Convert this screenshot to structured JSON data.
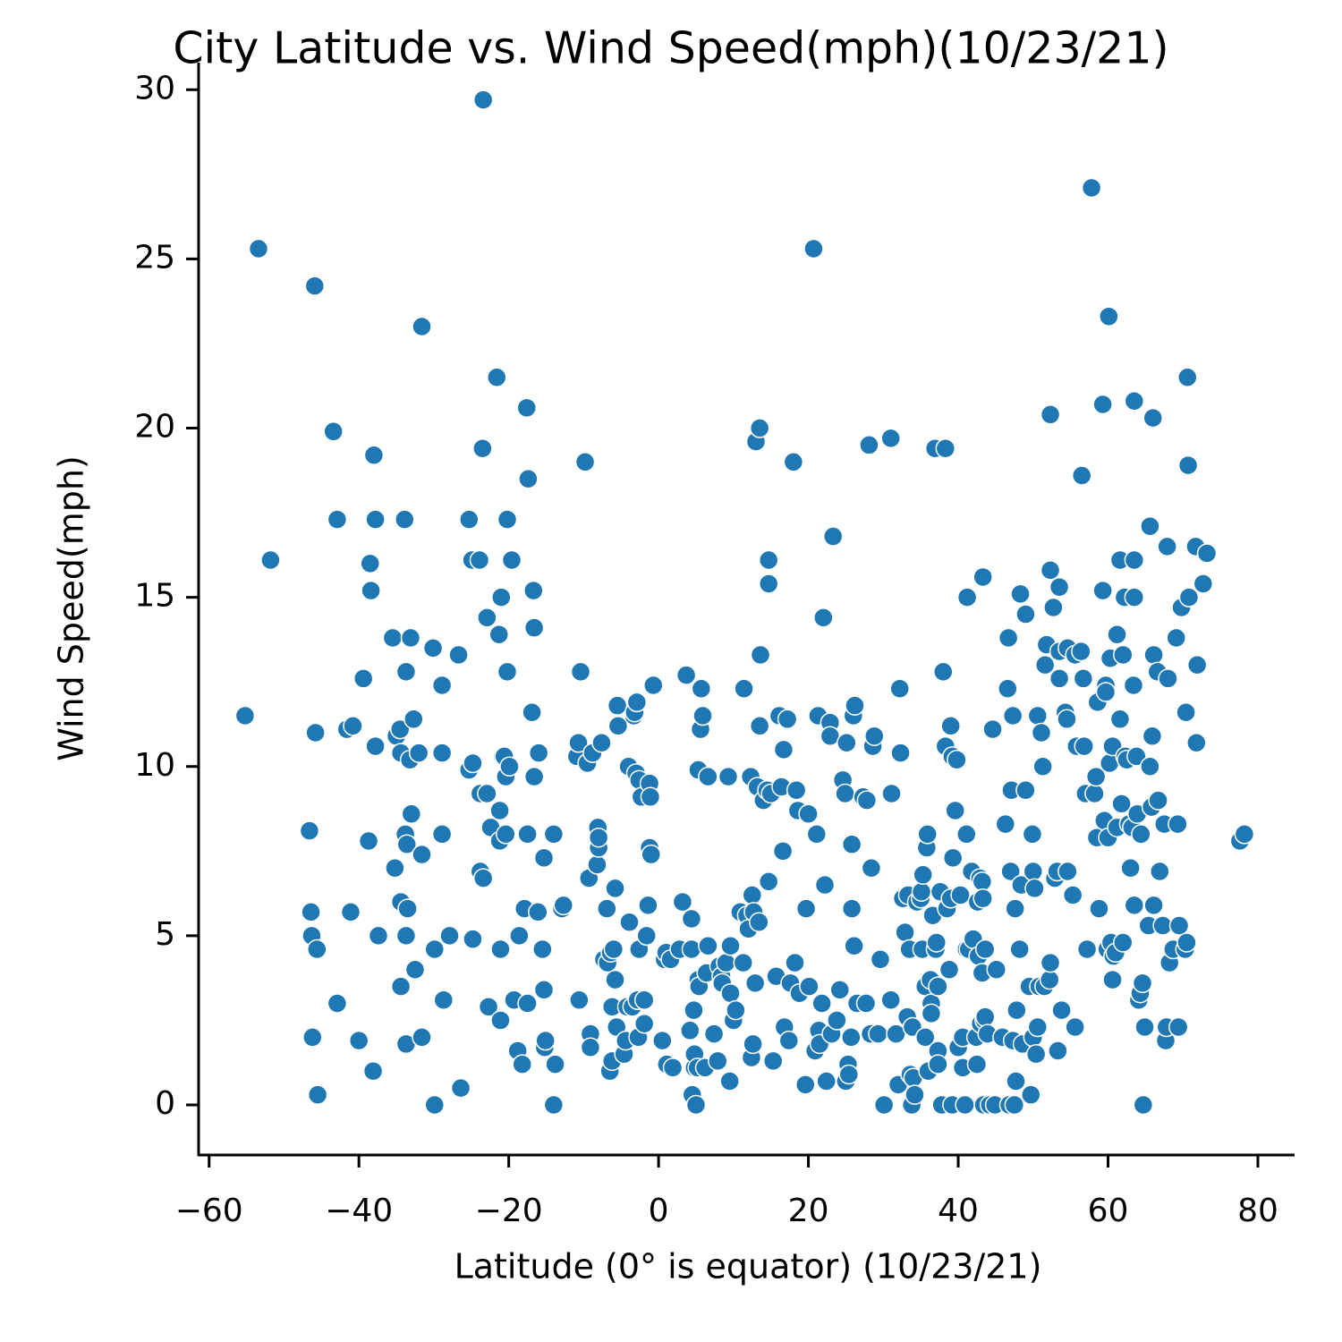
{
  "chart_data": {
    "type": "scatter",
    "title": "City Latitude vs. Wind Speed(mph)(10/23/21)",
    "x_label": "Latitude (0° is equator) (10/23/21)",
    "y_label": "Wind Speed(mph)",
    "color": "#1f77b4",
    "xlim": [
      -61.4,
      84.9
    ],
    "ylim": [
      -1.48,
      30.8
    ],
    "xticks": [
      {
        "value": -60,
        "label": "−60"
      },
      {
        "value": -40,
        "label": "−40"
      },
      {
        "value": -20,
        "label": "−20"
      },
      0,
      20,
      40,
      60,
      80
    ],
    "yticks": [
      0,
      5,
      10,
      15,
      20,
      25,
      30
    ],
    "x": [
      -55.2,
      -53.4,
      -51.8,
      -46.6,
      -46.4,
      -46.3,
      -46.2,
      -45.9,
      -45.8,
      -45.6,
      -45.5,
      -43.4,
      -42.9,
      -42.9,
      -41.6,
      -40.8,
      -41.1,
      -40.0,
      -39.4,
      -38.7,
      -38.5,
      -38.4,
      -38.1,
      -38.0,
      -37.8,
      -37.8,
      -37.4,
      -35.5,
      -35.2,
      -35.0,
      -34.5,
      -34.4,
      -34.4,
      -34.4,
      -33.9,
      -33.8,
      -33.7,
      -33.7,
      -33.7,
      -33.6,
      -33.5,
      -33.2,
      -33.1,
      -33.0,
      -32.7,
      -32.5,
      -32.0,
      -31.6,
      -31.6,
      -31.6,
      -30.1,
      -29.9,
      -29.9,
      -28.9,
      -28.9,
      -28.9,
      -28.7,
      -27.9,
      -26.7,
      -26.4,
      -25.3,
      -25.3,
      -24.9,
      -24.8,
      -24.8,
      -23.9,
      -23.8,
      -23.8,
      -23.4,
      -23.5,
      -23.4,
      -22.9,
      -22.9,
      -22.7,
      -22.4,
      -21.6,
      -21.3,
      -21.2,
      -21.2,
      -21.1,
      -21.1,
      -21.0,
      -20.8,
      -20.6,
      -20.4,
      -20.4,
      -20.2,
      -20.2,
      -19.9,
      -19.6,
      -19.3,
      -18.8,
      -18.6,
      -18.2,
      -17.9,
      -17.6,
      -17.5,
      -17.4,
      -17.5,
      -16.9,
      -16.7,
      -16.6,
      -16.6,
      -16.1,
      -16.0,
      -15.5,
      -15.3,
      -15.3,
      -15.2,
      -15.1,
      -14.0,
      -14.0,
      -13.8,
      -12.9,
      -12.7,
      -10.9,
      -10.7,
      -10.6,
      -10.4,
      -9.8,
      -9.5,
      -9.3,
      -9.1,
      -9.1,
      -8.8,
      -8.2,
      -8.1,
      -8.0,
      -8.0,
      -7.6,
      -7.3,
      -6.8,
      -6.9,
      -6.5,
      -6.4,
      -6.2,
      -6.2,
      -6.0,
      -5.8,
      -5.8,
      -5.6,
      -5.5,
      -5.4,
      -4.6,
      -4.4,
      -4.2,
      -4.0,
      -3.9,
      -3.5,
      -3.3,
      -3.2,
      -3.0,
      -2.9,
      -2.8,
      -2.7,
      -2.6,
      -2.6,
      -2.3,
      -1.9,
      -1.9,
      -1.6,
      -1.4,
      -1.2,
      -1.2,
      -1.1,
      -1.0,
      -0.7,
      0.5,
      0.8,
      1.0,
      1.1,
      1.6,
      1.9,
      2.8,
      3.2,
      3.7,
      4.2,
      4.4,
      4.4,
      4.5,
      4.7,
      4.8,
      4.8,
      5.0,
      5.2,
      5.3,
      5.3,
      5.4,
      5.6,
      5.7,
      5.9,
      6.2,
      6.4,
      6.6,
      6.6,
      7.4,
      7.9,
      8.1,
      8.4,
      8.5,
      9.0,
      9.3,
      9.5,
      9.6,
      9.6,
      10.0,
      10.3,
      10.9,
      11.3,
      11.4,
      11.8,
      12.0,
      12.3,
      12.4,
      12.5,
      12.6,
      12.7,
      12.9,
      13.0,
      13.2,
      13.4,
      13.5,
      13.5,
      13.6,
      14.0,
      14.5,
      14.7,
      14.7,
      14.7,
      15.0,
      15.3,
      15.7,
      16.1,
      16.4,
      16.6,
      16.7,
      16.8,
      17.2,
      17.4,
      17.6,
      18.0,
      18.2,
      18.4,
      18.6,
      18.8,
      19.6,
      19.7,
      20.0,
      20.1,
      20.7,
      20.9,
      21.1,
      21.3,
      21.4,
      21.5,
      21.8,
      22.0,
      22.2,
      22.4,
      22.9,
      22.9,
      23.1,
      23.3,
      23.8,
      24.2,
      24.6,
      24.9,
      25.0,
      25.1,
      25.3,
      25.4,
      25.7,
      25.8,
      25.8,
      26.0,
      26.1,
      26.2,
      26.5,
      27.3,
      27.7,
      27.8,
      28.1,
      28.3,
      28.4,
      28.6,
      28.8,
      29.3,
      29.6,
      30.1,
      31.0,
      31.0,
      31.1,
      31.7,
      32.0,
      32.2,
      32.3,
      32.6,
      32.9,
      33.2,
      33.3,
      33.5,
      33.6,
      33.8,
      33.9,
      34.0,
      34.2,
      34.5,
      35.0,
      35.1,
      35.2,
      35.3,
      35.6,
      35.6,
      35.8,
      35.9,
      36.0,
      36.3,
      36.4,
      36.4,
      36.6,
      36.9,
      37.0,
      37.1,
      37.3,
      37.3,
      37.3,
      37.6,
      37.8,
      38.0,
      38.3,
      38.3,
      38.5,
      38.8,
      39.0,
      39.0,
      39.2,
      39.3,
      39.2,
      39.6,
      39.8,
      40.0,
      40.3,
      40.6,
      40.6,
      40.9,
      41.1,
      41.2,
      41.1,
      41.4,
      41.8,
      42.0,
      42.4,
      42.5,
      42.6,
      42.7,
      42.9,
      43.0,
      43.2,
      43.2,
      43.3,
      43.3,
      43.4,
      43.5,
      43.6,
      43.6,
      43.9,
      44.2,
      44.6,
      44.9,
      45.1,
      45.9,
      46.3,
      46.6,
      46.7,
      46.8,
      47.1,
      47.0,
      47.3,
      47.3,
      47.5,
      47.6,
      47.7,
      47.8,
      48.2,
      48.3,
      48.4,
      48.6,
      49.0,
      49.0,
      49.5,
      49.7,
      49.9,
      50.0,
      50.0,
      50.2,
      50.4,
      50.6,
      50.6,
      50.8,
      51.1,
      51.3,
      51.5,
      51.6,
      51.8,
      52.2,
      52.3,
      52.3,
      52.3,
      52.7,
      52.9,
      53.2,
      53.3,
      53.5,
      53.5,
      53.5,
      53.8,
      54.3,
      54.5,
      54.6,
      54.6,
      55.3,
      55.6,
      55.6,
      55.8,
      56.4,
      56.5,
      56.7,
      56.8,
      57.0,
      57.2,
      57.8,
      58.2,
      58.4,
      58.5,
      58.6,
      58.8,
      59.3,
      59.3,
      59.5,
      59.7,
      59.7,
      59.9,
      60.0,
      60.1,
      60.2,
      60.3,
      60.4,
      60.6,
      60.6,
      60.7,
      61.0,
      61.2,
      61.2,
      61.6,
      61.6,
      61.8,
      62.0,
      62.0,
      62.2,
      62.3,
      62.5,
      62.8,
      63.0,
      63.2,
      63.4,
      63.5,
      63.5,
      63.5,
      63.5,
      63.8,
      63.9,
      64.1,
      64.3,
      64.4,
      64.6,
      64.7,
      64.9,
      65.4,
      65.6,
      65.6,
      65.8,
      65.9,
      66.0,
      66.1,
      66.1,
      66.6,
      66.7,
      66.9,
      67.3,
      67.5,
      67.7,
      67.8,
      67.9,
      68.0,
      68.2,
      68.7,
      69.1,
      69.3,
      69.4,
      69.5,
      69.8,
      70.3,
      70.4,
      70.5,
      70.6,
      70.7,
      70.8,
      71.7,
      71.8,
      71.9,
      72.7,
      73.2,
      77.6,
      78.2
    ],
    "values": [
      11.5,
      25.3,
      16.1,
      8.1,
      5.7,
      5.0,
      2.0,
      24.2,
      11.0,
      4.6,
      0.3,
      19.9,
      17.3,
      3.0,
      11.1,
      11.2,
      5.7,
      1.9,
      12.6,
      7.8,
      16.0,
      15.2,
      1.0,
      19.2,
      17.3,
      10.6,
      5.0,
      13.8,
      7.0,
      10.9,
      11.1,
      10.4,
      6.0,
      3.5,
      17.3,
      8.0,
      12.8,
      5.0,
      1.8,
      7.7,
      5.8,
      10.2,
      13.8,
      8.6,
      11.4,
      4.0,
      10.4,
      23.0,
      7.4,
      2.0,
      13.5,
      4.6,
      0.0,
      12.4,
      10.4,
      8.0,
      3.1,
      5.0,
      13.3,
      0.5,
      17.3,
      9.9,
      16.1,
      10.1,
      4.9,
      16.1,
      9.2,
      6.9,
      29.7,
      19.4,
      6.7,
      14.4,
      9.2,
      2.9,
      8.2,
      21.5,
      13.9,
      8.7,
      7.8,
      4.6,
      2.5,
      15.0,
      10.3,
      10.3,
      8.0,
      9.7,
      17.3,
      12.8,
      10.0,
      16.1,
      3.1,
      1.6,
      5.0,
      1.2,
      5.8,
      20.6,
      8.0,
      18.5,
      3.0,
      11.6,
      15.2,
      14.1,
      9.7,
      5.7,
      10.4,
      4.6,
      7.3,
      3.4,
      1.7,
      1.9,
      8.0,
      0.0,
      1.2,
      5.8,
      5.9,
      10.3,
      10.7,
      3.1,
      12.8,
      19.0,
      10.1,
      6.7,
      2.1,
      1.7,
      10.4,
      7.1,
      8.2,
      7.6,
      7.9,
      10.7,
      4.3,
      4.2,
      5.8,
      1.0,
      4.5,
      1.3,
      2.9,
      4.6,
      3.7,
      6.4,
      2.3,
      11.8,
      11.2,
      1.5,
      1.9,
      2.9,
      10.0,
      5.4,
      2.9,
      11.5,
      11.6,
      9.8,
      11.9,
      3.1,
      2.0,
      4.6,
      9.6,
      9.1,
      3.1,
      2.4,
      5.0,
      5.9,
      9.5,
      7.6,
      9.1,
      7.4,
      12.4,
      1.9,
      4.3,
      4.5,
      1.2,
      4.3,
      1.1,
      4.6,
      6.0,
      12.7,
      2.2,
      5.5,
      4.6,
      0.3,
      2.8,
      1.1,
      1.5,
      0.0,
      1.1,
      9.9,
      3.7,
      3.5,
      11.1,
      12.3,
      11.5,
      1.1,
      3.9,
      9.7,
      4.7,
      2.1,
      1.3,
      4.1,
      3.8,
      3.6,
      4.2,
      9.7,
      0.7,
      4.7,
      3.3,
      2.5,
      2.8,
      5.7,
      4.2,
      12.3,
      5.6,
      5.2,
      9.7,
      1.4,
      6.2,
      1.8,
      5.7,
      3.6,
      19.6,
      9.4,
      5.4,
      20.0,
      11.2,
      13.3,
      9.0,
      9.3,
      16.1,
      15.4,
      6.6,
      9.2,
      1.3,
      3.8,
      11.5,
      9.4,
      7.5,
      10.5,
      2.3,
      11.4,
      1.9,
      3.6,
      19.0,
      4.2,
      9.3,
      8.7,
      3.3,
      0.6,
      5.8,
      8.6,
      3.5,
      25.3,
      1.6,
      8.0,
      11.5,
      2.2,
      1.8,
      3.0,
      14.4,
      6.5,
      0.7,
      11.3,
      10.9,
      2.1,
      16.8,
      2.5,
      3.4,
      9.6,
      9.2,
      0.7,
      10.7,
      1.2,
      0.9,
      2.0,
      7.7,
      5.8,
      11.5,
      4.7,
      11.8,
      3.0,
      9.1,
      3.0,
      9.0,
      19.5,
      2.1,
      7.0,
      10.6,
      10.9,
      2.1,
      4.3,
      0.0,
      19.7,
      3.1,
      9.2,
      2.1,
      0.6,
      12.3,
      10.4,
      6.1,
      5.1,
      2.6,
      6.2,
      4.6,
      0.9,
      0.0,
      2.3,
      0.8,
      0.3,
      6.0,
      6.1,
      6.3,
      4.6,
      6.8,
      3.5,
      2.0,
      7.6,
      8.0,
      1.0,
      3.7,
      3.0,
      2.7,
      5.6,
      19.4,
      4.6,
      4.8,
      1.6,
      1.2,
      3.5,
      6.3,
      0.0,
      12.8,
      10.6,
      19.4,
      5.8,
      4.0,
      11.2,
      6.1,
      10.3,
      7.3,
      0.0,
      8.7,
      10.2,
      1.7,
      6.2,
      2.0,
      1.1,
      0.0,
      4.6,
      15.0,
      8.0,
      4.6,
      6.9,
      4.9,
      2.0,
      1.2,
      6.0,
      4.4,
      6.7,
      2.4,
      6.6,
      3.9,
      15.6,
      6.1,
      0.0,
      2.5,
      2.6,
      4.6,
      2.1,
      0.0,
      11.1,
      0.0,
      4.0,
      2.0,
      8.3,
      12.3,
      13.8,
      0.0,
      9.3,
      6.9,
      1.9,
      11.5,
      0.0,
      5.8,
      0.7,
      2.8,
      4.6,
      15.1,
      6.5,
      1.8,
      14.5,
      9.3,
      3.5,
      0.3,
      8.0,
      2.0,
      6.9,
      6.4,
      1.5,
      11.5,
      2.3,
      3.5,
      11.0,
      10.0,
      3.5,
      13.0,
      13.6,
      3.7,
      20.4,
      15.8,
      4.2,
      14.7,
      6.7,
      6.9,
      1.6,
      15.3,
      12.6,
      13.4,
      2.8,
      11.6,
      11.4,
      6.9,
      13.5,
      6.2,
      13.3,
      2.3,
      10.6,
      13.4,
      18.6,
      12.6,
      10.6,
      9.2,
      4.6,
      27.1,
      9.2,
      9.7,
      7.9,
      11.9,
      5.8,
      15.2,
      20.7,
      8.4,
      12.4,
      12.2,
      4.6,
      7.9,
      23.3,
      10.1,
      13.2,
      4.8,
      10.6,
      3.7,
      4.4,
      4.5,
      8.2,
      13.9,
      16.1,
      11.4,
      8.9,
      4.8,
      13.3,
      15.0,
      10.3,
      10.2,
      8.3,
      7.0,
      8.2,
      12.4,
      5.9,
      15.0,
      16.1,
      20.8,
      10.3,
      8.6,
      3.1,
      3.3,
      8.0,
      3.6,
      0.0,
      2.3,
      5.3,
      10.0,
      17.1,
      8.8,
      10.9,
      20.3,
      5.9,
      13.3,
      12.8,
      9.0,
      6.9,
      5.3,
      8.3,
      1.9,
      2.3,
      16.5,
      12.6,
      4.2,
      4.6,
      13.8,
      8.3,
      2.3,
      5.3,
      14.7,
      4.6,
      11.6,
      4.8,
      21.5,
      18.9,
      15.0,
      16.5,
      10.7,
      13.0,
      15.4,
      16.3,
      7.8,
      8.0
    ]
  }
}
